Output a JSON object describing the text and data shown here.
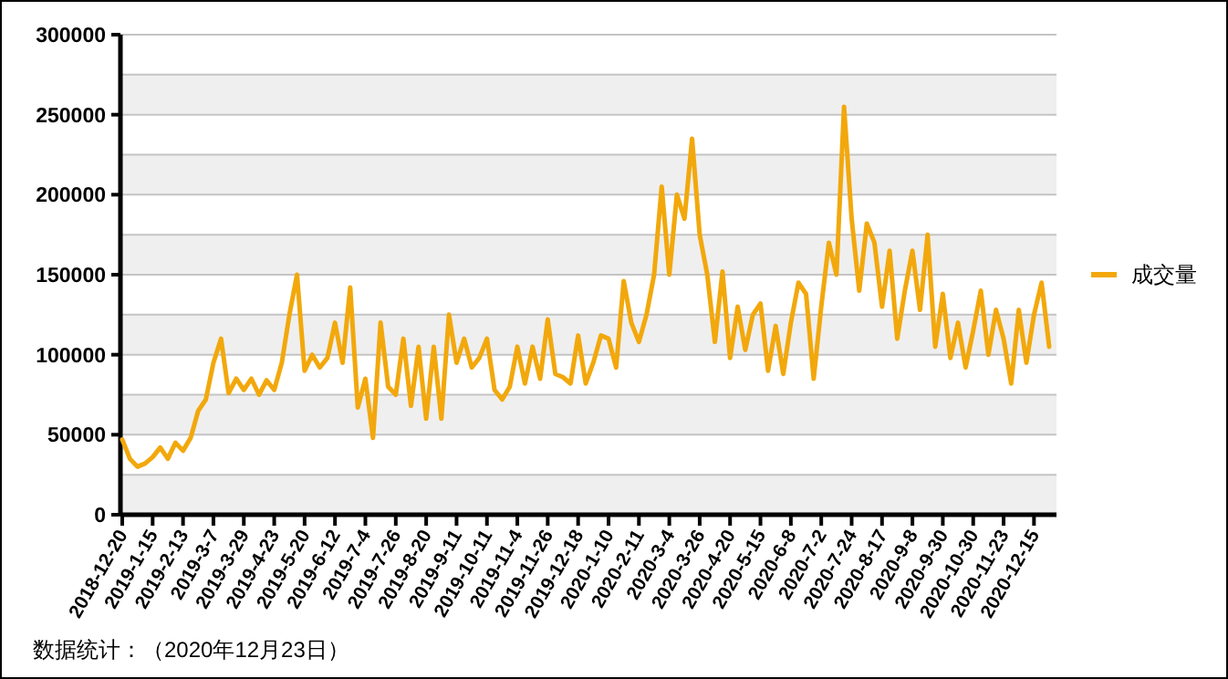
{
  "chart_data": {
    "type": "line",
    "categories": [
      "2018-12-20",
      null,
      null,
      null,
      "2019-1-15",
      null,
      null,
      null,
      "2019-2-13",
      null,
      null,
      null,
      "2019-3-7",
      null,
      null,
      null,
      "2019-3-29",
      null,
      null,
      null,
      "2019-4-23",
      null,
      null,
      null,
      "2019-5-20",
      null,
      null,
      null,
      "2019-6-12",
      null,
      null,
      null,
      "2019-7-4",
      null,
      null,
      null,
      "2019-7-26",
      null,
      null,
      null,
      "2019-8-20",
      null,
      null,
      null,
      "2019-9-11",
      null,
      null,
      null,
      "2019-10-11",
      null,
      null,
      null,
      "2019-11-4",
      null,
      null,
      null,
      "2019-11-26",
      null,
      null,
      null,
      "2019-12-18",
      null,
      null,
      null,
      "2020-1-10",
      null,
      null,
      null,
      "2020-2-11",
      null,
      null,
      null,
      "2020-3-4",
      null,
      null,
      null,
      "2020-3-26",
      null,
      null,
      null,
      "2020-4-20",
      null,
      null,
      null,
      "2020-5-15",
      null,
      null,
      null,
      "2020-6-8",
      null,
      null,
      null,
      "2020-7-2",
      null,
      null,
      null,
      "2020-7-24",
      null,
      null,
      null,
      "2020-8-17",
      null,
      null,
      null,
      "2020-9-8",
      null,
      null,
      null,
      "2020-9-30",
      null,
      null,
      null,
      "2020-10-30",
      null,
      null,
      null,
      "2020-11-23",
      null,
      null,
      null,
      "2020-12-15",
      null,
      null
    ],
    "series": [
      {
        "name": "成交量",
        "color": "#f2a80c",
        "values": [
          47000,
          35000,
          30000,
          32000,
          36000,
          42000,
          35000,
          45000,
          40000,
          48000,
          65000,
          72000,
          95000,
          110000,
          76000,
          85000,
          78000,
          85000,
          75000,
          84000,
          78000,
          95000,
          125000,
          150000,
          90000,
          100000,
          92000,
          98000,
          120000,
          95000,
          142000,
          67000,
          85000,
          48000,
          120000,
          80000,
          75000,
          110000,
          68000,
          105000,
          60000,
          105000,
          60000,
          125000,
          95000,
          110000,
          92000,
          98000,
          110000,
          78000,
          72000,
          80000,
          105000,
          82000,
          105000,
          85000,
          122000,
          88000,
          86000,
          82000,
          112000,
          82000,
          95000,
          112000,
          110000,
          92000,
          146000,
          120000,
          108000,
          125000,
          150000,
          205000,
          150000,
          200000,
          185000,
          235000,
          175000,
          150000,
          108000,
          152000,
          98000,
          130000,
          103000,
          125000,
          132000,
          90000,
          118000,
          88000,
          120000,
          145000,
          138000,
          85000,
          130000,
          170000,
          150000,
          255000,
          185000,
          140000,
          182000,
          170000,
          130000,
          165000,
          110000,
          140000,
          165000,
          128000,
          175000,
          105000,
          138000,
          98000,
          120000,
          92000,
          115000,
          140000,
          100000,
          128000,
          110000,
          82000,
          128000,
          95000,
          125000,
          145000,
          105000
        ]
      }
    ],
    "ylim": [
      0,
      300000
    ],
    "yticks": [
      0,
      {
        "value": 25000,
        "label": null
      },
      50000,
      {
        "value": 75000,
        "label": null
      },
      100000,
      {
        "value": 125000,
        "label": null
      },
      150000,
      {
        "value": 175000,
        "label": null
      },
      200000,
      {
        "value": 225000,
        "label": null
      },
      250000,
      {
        "value": 275000,
        "label": null
      },
      300000
    ],
    "grid": "y",
    "legend": "right",
    "annotations": [
      "数据统计：（2020年12月23日）"
    ]
  }
}
